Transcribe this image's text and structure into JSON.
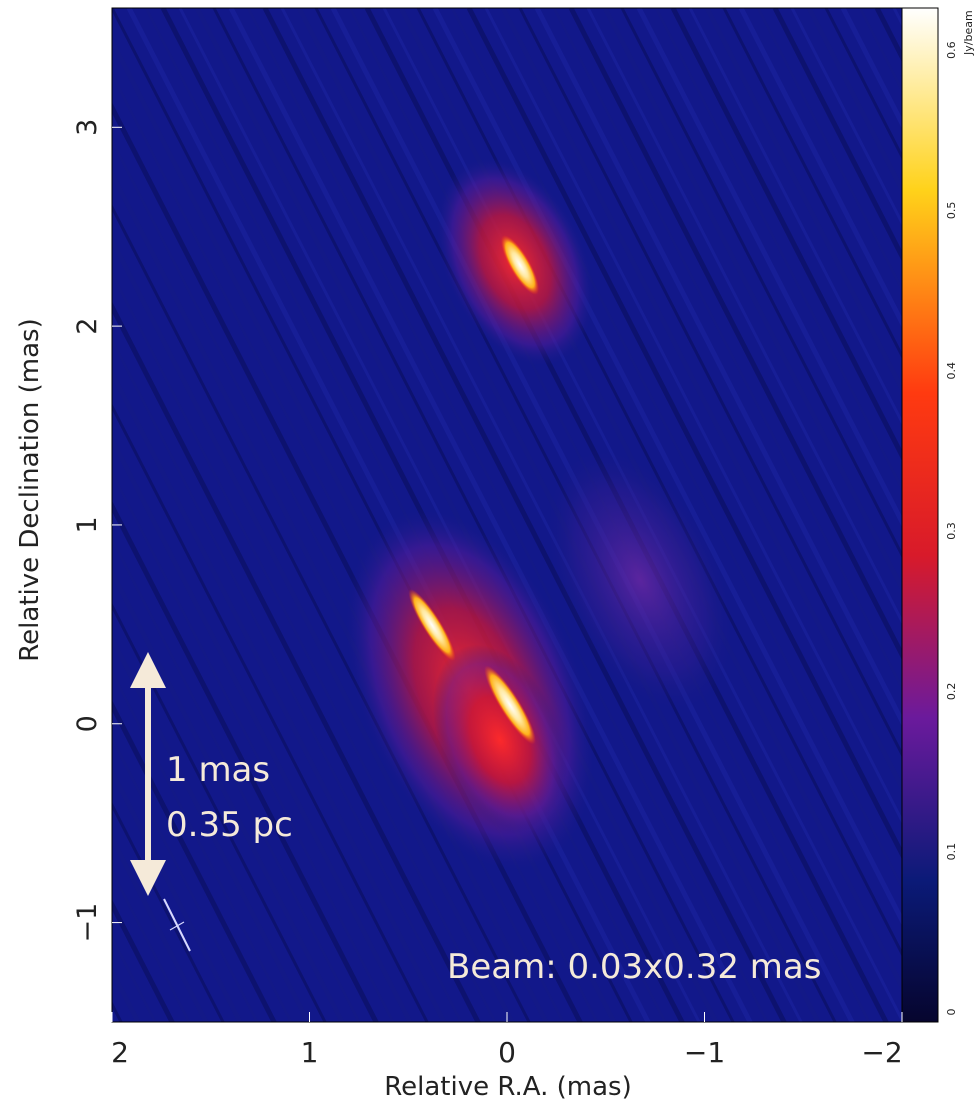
{
  "chart_data": {
    "type": "heatmap",
    "title": "",
    "xlabel": "Relative R.A. (mas)",
    "ylabel": "Relative Declination (mas)",
    "xlim": [
      2,
      -2
    ],
    "ylim": [
      -1.5,
      3.6
    ],
    "x_ticks": [
      "2",
      "1",
      "0",
      "−1",
      "−2"
    ],
    "y_ticks": [
      "−1",
      "0",
      "1",
      "2",
      "3"
    ],
    "colorbar": {
      "unit_label": "Jy/beam",
      "range": [
        0,
        0.62
      ],
      "tick_labels": [
        "0",
        "0.1",
        "0.2",
        "0.3",
        "0.4",
        "0.5",
        "0.6"
      ],
      "colormap": [
        "#06052e",
        "#0b1a78",
        "#6b1a9c",
        "#d81a2a",
        "#ff3a10",
        "#ffd21a",
        "#ffffff"
      ]
    },
    "components": [
      {
        "x": -0.05,
        "y": 2.15,
        "peak": 0.55
      },
      {
        "x": 0.33,
        "y": 0.3,
        "peak": 0.62
      },
      {
        "x": -0.05,
        "y": -0.05,
        "peak": 0.62
      }
    ],
    "annotations": {
      "scale_bar_line1": "1 mas",
      "scale_bar_line2": "0.35 pc",
      "beam": "Beam: 0.03x0.32 mas"
    }
  }
}
